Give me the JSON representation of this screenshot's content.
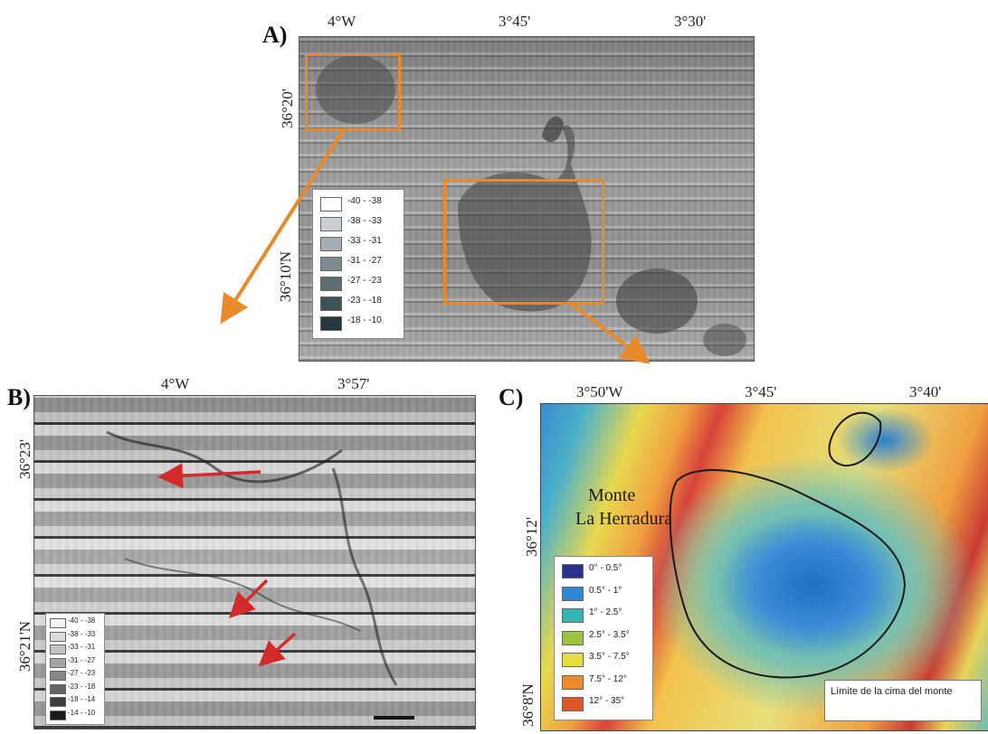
{
  "panel_a": {
    "label": "A)",
    "top_coords": [
      "4°W",
      "3°45'",
      "3°30'"
    ],
    "left_coords": [
      "36°20'",
      "36°10'N"
    ],
    "legend": [
      {
        "text": "-40 - -38",
        "color": "#ffffff"
      },
      {
        "text": "-38 - -33",
        "color": "#c9ced2"
      },
      {
        "text": "-33 - -31",
        "color": "#a4adb2"
      },
      {
        "text": "-31 - -27",
        "color": "#7d8a90"
      },
      {
        "text": "-27 - -23",
        "color": "#5c6e74"
      },
      {
        "text": "-23 - -18",
        "color": "#3e5358"
      },
      {
        "text": "-18 - -10",
        "color": "#24393e"
      }
    ]
  },
  "panel_b": {
    "label": "B)",
    "top_coords": [
      "4°W",
      "3°57'"
    ],
    "left_coords": [
      "36°23'",
      "36°21'N"
    ],
    "legend": [
      {
        "text": "-40 - -38",
        "color": "#f4f4f4"
      },
      {
        "text": "-38 - -33",
        "color": "#dcdcdc"
      },
      {
        "text": "-33 - -31",
        "color": "#c2c2c2"
      },
      {
        "text": "-31 - -27",
        "color": "#a6a6a6"
      },
      {
        "text": "-27 - -23",
        "color": "#868686"
      },
      {
        "text": "-23 - -18",
        "color": "#626262"
      },
      {
        "text": "-18 - -14",
        "color": "#3e3e3e"
      },
      {
        "text": "-14 - -10",
        "color": "#1a1a1a"
      }
    ]
  },
  "panel_c": {
    "label": "C)",
    "top_coords": [
      "3°50'W",
      "3°45'",
      "3°40'"
    ],
    "left_coords": [
      "36°12'",
      "36°8'N"
    ],
    "feature_name_line1": "Monte",
    "feature_name_line2": "La Herradura",
    "legend": [
      {
        "text": "0° - 0.5°",
        "color": "#2b2f8f"
      },
      {
        "text": "0.5° - 1°",
        "color": "#2f86d6"
      },
      {
        "text": "1° - 2.5°",
        "color": "#35b3b2"
      },
      {
        "text": "2.5° - 3.5°",
        "color": "#9ac43c"
      },
      {
        "text": "3.5° - 7.5°",
        "color": "#e6df3a"
      },
      {
        "text": "7.5° - 12°",
        "color": "#ef8a2a"
      },
      {
        "text": "12° - 35°",
        "color": "#e2542a"
      }
    ],
    "summit_note": "Límite de la cima del monte"
  },
  "colors": {
    "highlight_orange": "#e88a2a",
    "arrow_red": "#d42a2a",
    "outline": "#1a1a1a"
  }
}
